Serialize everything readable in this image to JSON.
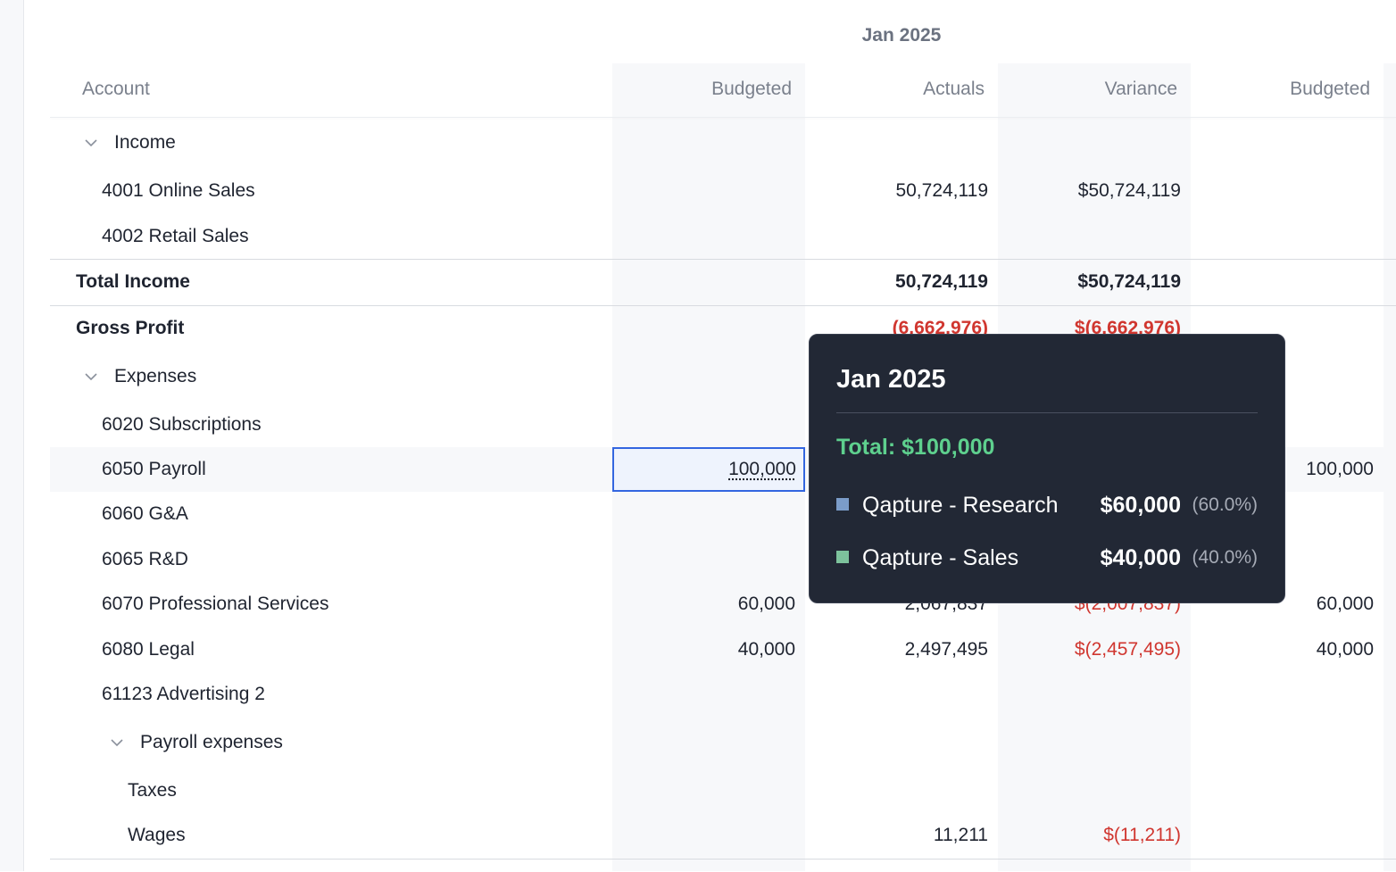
{
  "table": {
    "month": "Jan 2025",
    "headers": {
      "account": "Account",
      "budgeted": "Budgeted",
      "actuals": "Actuals",
      "variance": "Variance",
      "budgeted_next": "Budgeted"
    },
    "rows": [
      {
        "label": "Income",
        "chevron": true
      },
      {
        "label": "4001 Online Sales",
        "actuals": "50,724,119",
        "variance": "$50,724,119"
      },
      {
        "label": "4002 Retail Sales"
      },
      {
        "label": "Total Income",
        "actuals": "50,724,119",
        "variance": "$50,724,119"
      },
      {
        "label": "Gross Profit",
        "actuals": "(6,662,976)",
        "variance": "$(6,662,976)"
      },
      {
        "label": "Expenses",
        "chevron": true
      },
      {
        "label": "6020 Subscriptions"
      },
      {
        "label": "6050 Payroll",
        "budgeted": "100,000",
        "budgeted_next": "100,000"
      },
      {
        "label": "6060 G&A"
      },
      {
        "label": "6065 R&D"
      },
      {
        "label": "6070 Professional Services",
        "budgeted": "60,000",
        "actuals": "2,067,837",
        "variance": "$(2,007,837)",
        "budgeted_next": "60,000"
      },
      {
        "label": "6080 Legal",
        "budgeted": "40,000",
        "actuals": "2,497,495",
        "variance": "$(2,457,495)",
        "budgeted_next": "40,000"
      },
      {
        "label": "61123 Advertising 2"
      },
      {
        "label": "Payroll expenses",
        "chevron": true
      },
      {
        "label": "Taxes"
      },
      {
        "label": "Wages",
        "actuals": "11,211",
        "variance": "$(11,211)"
      }
    ]
  },
  "tooltip": {
    "title": "Jan 2025",
    "total": "Total: $100,000",
    "items": [
      {
        "name": "Qapture - Research",
        "amount": "$60,000",
        "percent": "(60.0%)",
        "color": "#7b9cc9"
      },
      {
        "name": "Qapture - Sales",
        "amount": "$40,000",
        "percent": "(40.0%)",
        "color": "#7dc29c"
      }
    ]
  },
  "colors": {
    "negative": "#d0362f",
    "selection": "#3366e0",
    "total_green": "#5ed08e"
  }
}
